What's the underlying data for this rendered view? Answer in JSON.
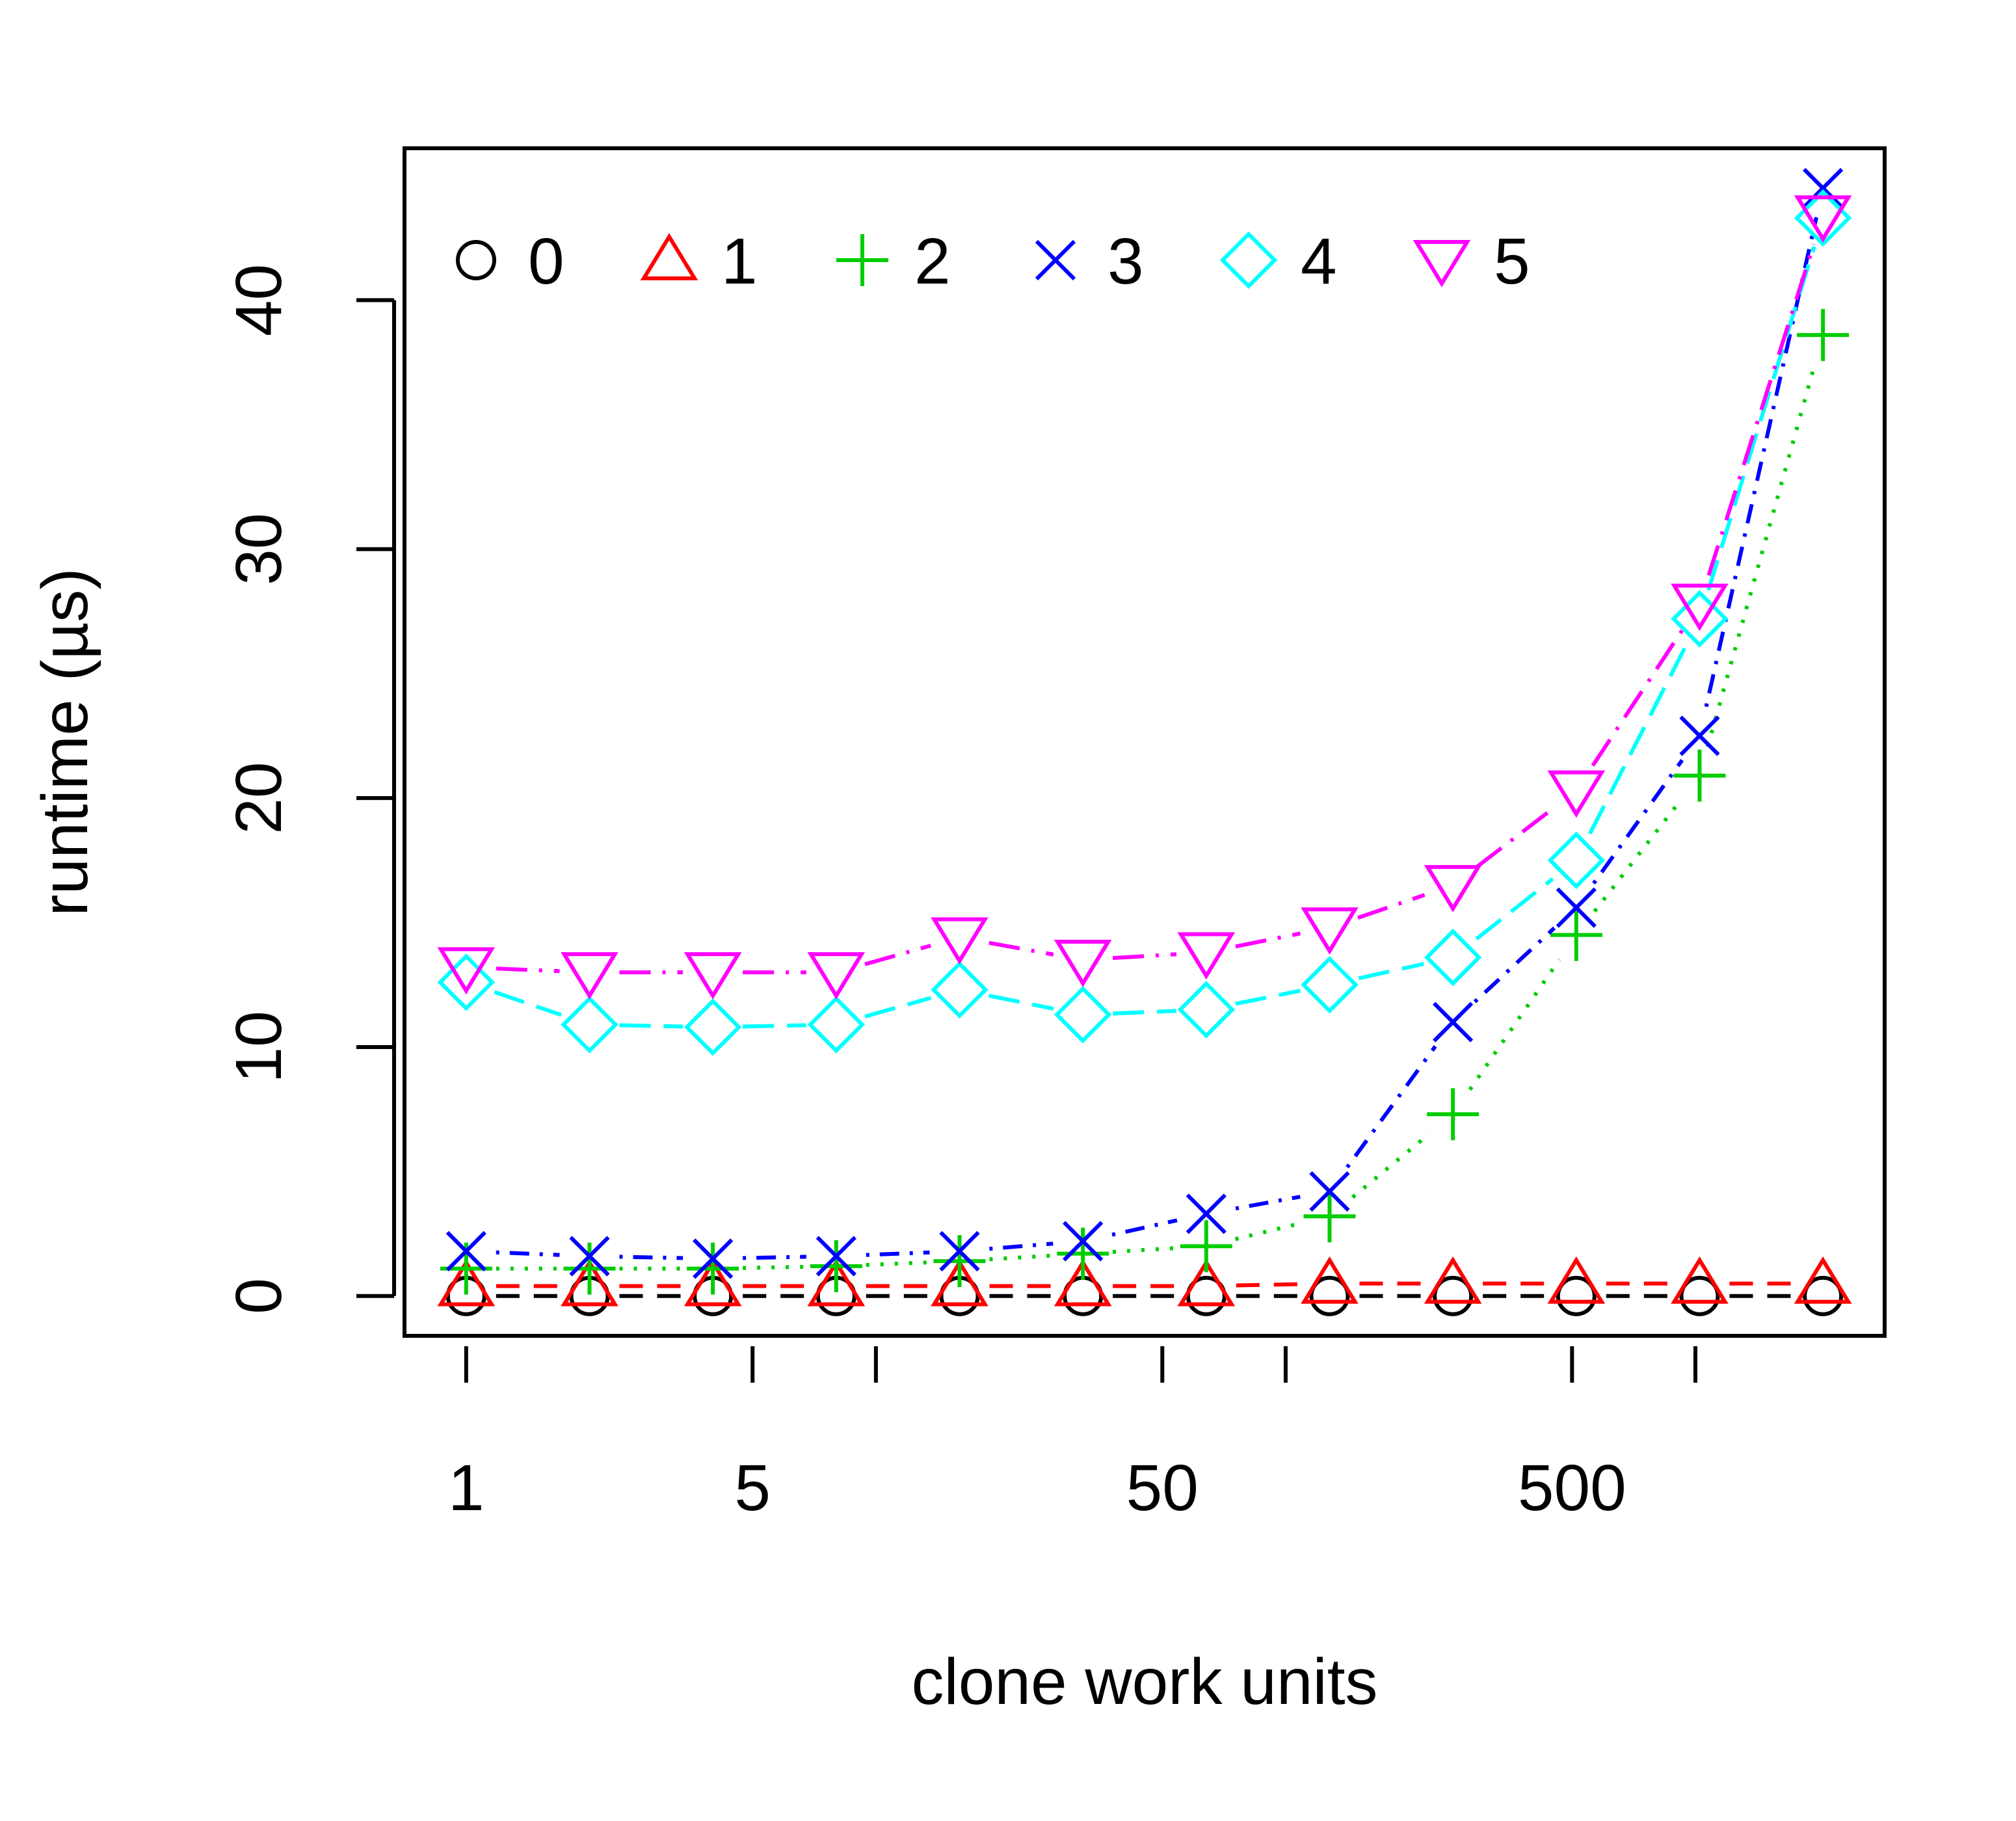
{
  "chart_data": {
    "type": "line",
    "title": "",
    "xlabel": "clone work units",
    "ylabel": "runtime (µs)",
    "x_scale": "log2",
    "x": [
      1,
      2,
      4,
      8,
      16,
      32,
      64,
      128,
      256,
      512,
      1024,
      2048
    ],
    "xticks": [
      {
        "value": 1,
        "label": "1"
      },
      {
        "value": 5,
        "label": "5"
      },
      {
        "value": 10,
        "label": ""
      },
      {
        "value": 50,
        "label": "50"
      },
      {
        "value": 100,
        "label": ""
      },
      {
        "value": 500,
        "label": "500"
      },
      {
        "value": 1000,
        "label": ""
      }
    ],
    "yticks": [
      {
        "value": 0,
        "label": "0"
      },
      {
        "value": 10,
        "label": "10"
      },
      {
        "value": 20,
        "label": "20"
      },
      {
        "value": 30,
        "label": "30"
      },
      {
        "value": 40,
        "label": "40"
      }
    ],
    "ylim": [
      -1.6,
      46.1
    ],
    "xlim_log2": [
      -0.5,
      11.5
    ],
    "legend_position": "top-left",
    "grid": false,
    "series": [
      {
        "name": "0",
        "color": "#000000",
        "marker": "circle",
        "dash": "36 22",
        "values": [
          0.0,
          0.0,
          0.0,
          0.0,
          0.0,
          0.0,
          0.0,
          0.0,
          0.0,
          0.0,
          0.0,
          0.0
        ]
      },
      {
        "name": "1",
        "color": "#ff0000",
        "marker": "triangle-up",
        "dash": "36 22",
        "values": [
          0.4,
          0.4,
          0.4,
          0.4,
          0.4,
          0.4,
          0.4,
          0.5,
          0.5,
          0.5,
          0.5,
          0.5
        ]
      },
      {
        "name": "2",
        "color": "#00cd00",
        "marker": "plus",
        "dash": "5 17",
        "values": [
          1.1,
          1.1,
          1.1,
          1.2,
          1.4,
          1.7,
          2.0,
          3.2,
          7.3,
          14.5,
          20.9,
          38.6
        ]
      },
      {
        "name": "3",
        "color": "#0000ff",
        "marker": "cross",
        "dash": "5 16 30 16",
        "values": [
          1.8,
          1.6,
          1.5,
          1.6,
          1.8,
          2.2,
          3.3,
          4.2,
          11.0,
          15.6,
          22.5,
          44.5
        ]
      },
      {
        "name": "4",
        "color": "#00ffff",
        "marker": "diamond",
        "dash": "48 20",
        "values": [
          12.6,
          10.9,
          10.8,
          10.9,
          12.3,
          11.3,
          11.5,
          12.5,
          13.6,
          17.5,
          27.2,
          43.3
        ]
      },
      {
        "name": "5",
        "color": "#ff00ff",
        "marker": "triangle-down",
        "dash": "48 18 5 18",
        "values": [
          13.2,
          13.0,
          13.0,
          13.0,
          14.4,
          13.5,
          13.8,
          14.8,
          16.5,
          20.3,
          27.8,
          43.4
        ]
      }
    ]
  }
}
